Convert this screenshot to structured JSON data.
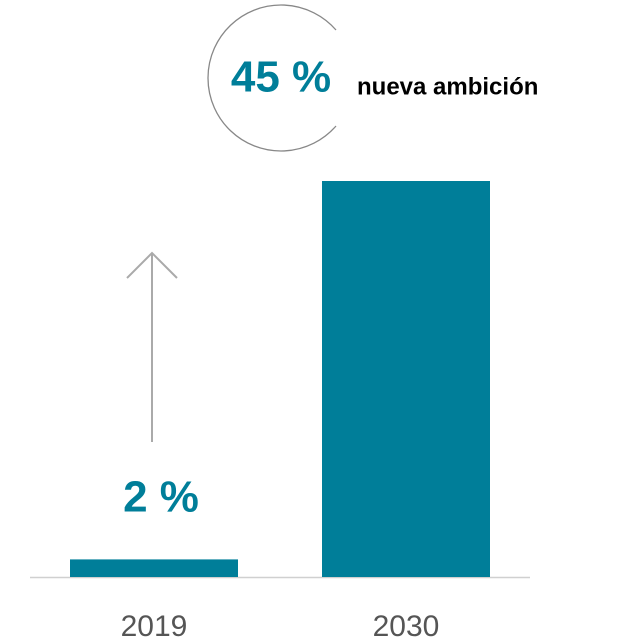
{
  "chart_data": {
    "type": "bar",
    "categories": [
      "2019",
      "2030"
    ],
    "values": [
      2,
      45
    ],
    "value_labels": [
      "2 %",
      "45 %"
    ],
    "annotation": "nueva ambición",
    "color": "#007e99"
  }
}
